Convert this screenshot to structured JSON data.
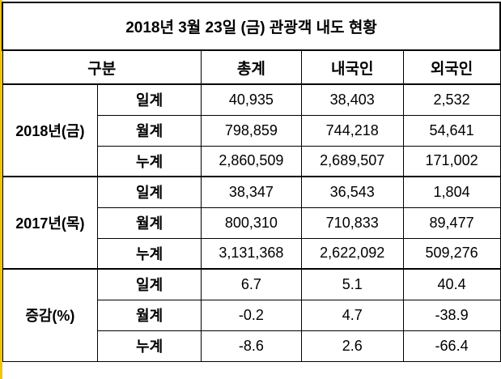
{
  "title": "2018년 3월 23일 (금) 관광객 내도 현황",
  "headers": {
    "category": "구분",
    "total": "총계",
    "domestic": "내국인",
    "foreign": "외국인"
  },
  "groups": [
    {
      "label": "2018년(금)",
      "rows": [
        {
          "sub": "일계",
          "total": "40,935",
          "domestic": "38,403",
          "foreign": "2,532"
        },
        {
          "sub": "월계",
          "total": "798,859",
          "domestic": "744,218",
          "foreign": "54,641"
        },
        {
          "sub": "누계",
          "total": "2,860,509",
          "domestic": "2,689,507",
          "foreign": "171,002"
        }
      ]
    },
    {
      "label": "2017년(목)",
      "rows": [
        {
          "sub": "일계",
          "total": "38,347",
          "domestic": "36,543",
          "foreign": "1,804"
        },
        {
          "sub": "월계",
          "total": "800,310",
          "domestic": "710,833",
          "foreign": "89,477"
        },
        {
          "sub": "누계",
          "total": "3,131,368",
          "domestic": "2,622,092",
          "foreign": "509,276"
        }
      ]
    },
    {
      "label": "증감(%)",
      "rows": [
        {
          "sub": "일계",
          "total": "6.7",
          "domestic": "5.1",
          "foreign": "40.4"
        },
        {
          "sub": "월계",
          "total": "-0.2",
          "domestic": "4.7",
          "foreign": "-38.9"
        },
        {
          "sub": "누계",
          "total": "-8.6",
          "domestic": "2.6",
          "foreign": "-66.4"
        }
      ]
    }
  ]
}
